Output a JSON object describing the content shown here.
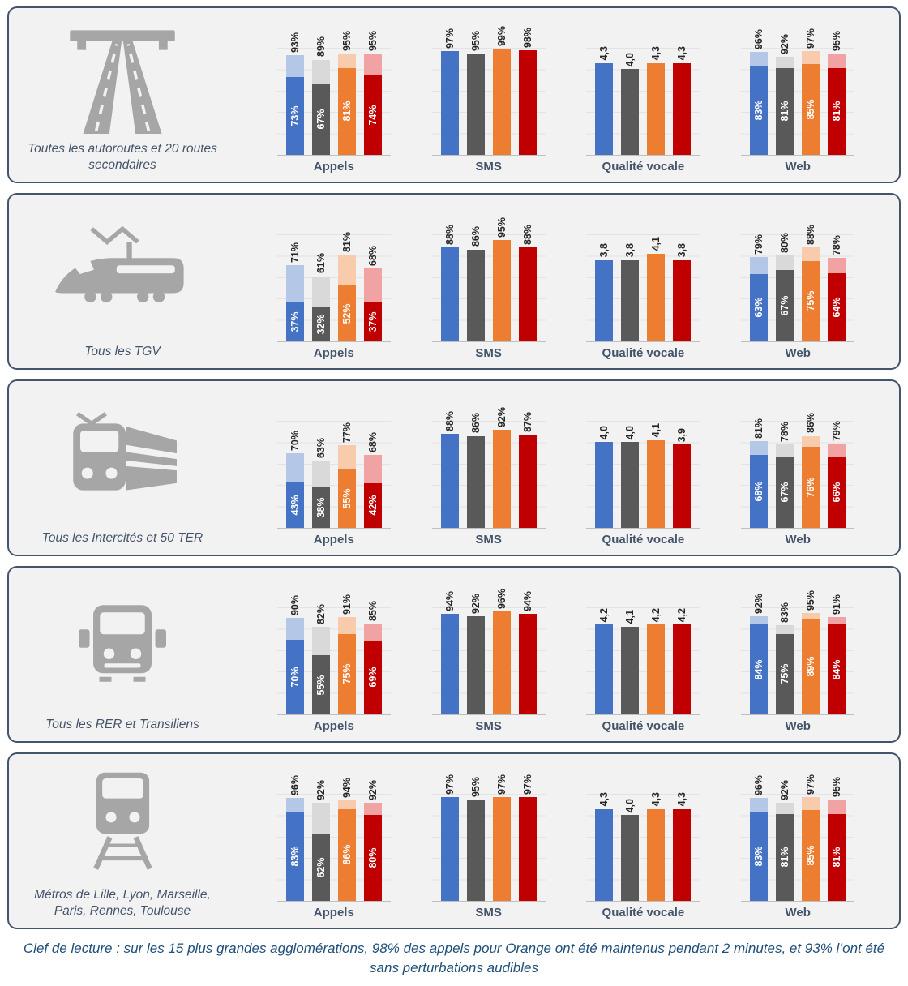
{
  "caption": "Clef de lecture : sur les 15 plus grandes agglomérations, 98% des appels pour Orange ont été maintenus pendant 2 minutes, et 93% l’ont été sans perturbations audibles",
  "series_names": [
    "blue",
    "gray",
    "orange",
    "red"
  ],
  "colors": {
    "series": [
      "#4472C4",
      "#595959",
      "#ED7D31",
      "#C00000"
    ],
    "series_light": [
      "#B4C7E7",
      "#D9D9D9",
      "#F8CBAD",
      "#F1A3A3"
    ],
    "panel_border": "#44546A",
    "panel_bg": "#F2F2F2",
    "icon": "#A6A6A6",
    "title_text": "#44546A",
    "value_text": "#262626",
    "caption_text": "#1F4E79"
  },
  "chart_data": [
    {
      "group": "Toutes les autoroutes et 20 routes secondaires",
      "icon": "highway",
      "charts": [
        {
          "type": "bar",
          "stacked": true,
          "title": "Appels",
          "max": 100,
          "totals": [
            93,
            89,
            95,
            95
          ],
          "total_labels": [
            "93%",
            "89%",
            "95%",
            "95%"
          ],
          "inner": [
            73,
            67,
            81,
            74
          ],
          "inner_labels": [
            "73%",
            "67%",
            "81%",
            "74%"
          ]
        },
        {
          "type": "bar",
          "stacked": false,
          "title": "SMS",
          "max": 100,
          "totals": [
            97,
            95,
            99,
            98
          ],
          "total_labels": [
            "97%",
            "95%",
            "99%",
            "98%"
          ]
        },
        {
          "type": "bar",
          "stacked": false,
          "title": "Qualité vocale",
          "max": 5,
          "totals": [
            4.3,
            4.0,
            4.3,
            4.3
          ],
          "total_labels": [
            "4,3",
            "4,0",
            "4,3",
            "4,3"
          ]
        },
        {
          "type": "bar",
          "stacked": true,
          "title": "Web",
          "max": 100,
          "totals": [
            96,
            92,
            97,
            95
          ],
          "total_labels": [
            "96%",
            "92%",
            "97%",
            "95%"
          ],
          "inner": [
            83,
            81,
            85,
            81
          ],
          "inner_labels": [
            "83%",
            "81%",
            "85%",
            "81%"
          ]
        }
      ]
    },
    {
      "group": "Tous les TGV",
      "icon": "tgv",
      "charts": [
        {
          "type": "bar",
          "stacked": true,
          "title": "Appels",
          "max": 100,
          "totals": [
            71,
            61,
            81,
            68
          ],
          "total_labels": [
            "71%",
            "61%",
            "81%",
            "68%"
          ],
          "inner": [
            37,
            32,
            52,
            37
          ],
          "inner_labels": [
            "37%",
            "32%",
            "52%",
            "37%"
          ]
        },
        {
          "type": "bar",
          "stacked": false,
          "title": "SMS",
          "max": 100,
          "totals": [
            88,
            86,
            95,
            88
          ],
          "total_labels": [
            "88%",
            "86%",
            "95%",
            "88%"
          ]
        },
        {
          "type": "bar",
          "stacked": false,
          "title": "Qualité vocale",
          "max": 5,
          "totals": [
            3.8,
            3.8,
            4.1,
            3.8
          ],
          "total_labels": [
            "3,8",
            "3,8",
            "4,1",
            "3,8"
          ]
        },
        {
          "type": "bar",
          "stacked": true,
          "title": "Web",
          "max": 100,
          "totals": [
            79,
            80,
            88,
            78
          ],
          "total_labels": [
            "79%",
            "80%",
            "88%",
            "78%"
          ],
          "inner": [
            63,
            67,
            75,
            64
          ],
          "inner_labels": [
            "63%",
            "67%",
            "75%",
            "64%"
          ]
        }
      ]
    },
    {
      "group": "Tous les Intercités et 50 TER",
      "icon": "train",
      "charts": [
        {
          "type": "bar",
          "stacked": true,
          "title": "Appels",
          "max": 100,
          "totals": [
            70,
            63,
            77,
            68
          ],
          "total_labels": [
            "70%",
            "63%",
            "77%",
            "68%"
          ],
          "inner": [
            43,
            38,
            55,
            42
          ],
          "inner_labels": [
            "43%",
            "38%",
            "55%",
            "42%"
          ]
        },
        {
          "type": "bar",
          "stacked": false,
          "title": "SMS",
          "max": 100,
          "totals": [
            88,
            86,
            92,
            87
          ],
          "total_labels": [
            "88%",
            "86%",
            "92%",
            "87%"
          ]
        },
        {
          "type": "bar",
          "stacked": false,
          "title": "Qualité vocale",
          "max": 5,
          "totals": [
            4.0,
            4.0,
            4.1,
            3.9
          ],
          "total_labels": [
            "4,0",
            "4,0",
            "4,1",
            "3,9"
          ]
        },
        {
          "type": "bar",
          "stacked": true,
          "title": "Web",
          "max": 100,
          "totals": [
            81,
            78,
            86,
            79
          ],
          "total_labels": [
            "81%",
            "78%",
            "86%",
            "79%"
          ],
          "inner": [
            68,
            67,
            76,
            66
          ],
          "inner_labels": [
            "68%",
            "67%",
            "76%",
            "66%"
          ]
        }
      ]
    },
    {
      "group": "Tous les RER et Transiliens",
      "icon": "rer",
      "charts": [
        {
          "type": "bar",
          "stacked": true,
          "title": "Appels",
          "max": 100,
          "totals": [
            90,
            82,
            91,
            85
          ],
          "total_labels": [
            "90%",
            "82%",
            "91%",
            "85%"
          ],
          "inner": [
            70,
            55,
            75,
            69
          ],
          "inner_labels": [
            "70%",
            "55%",
            "75%",
            "69%"
          ]
        },
        {
          "type": "bar",
          "stacked": false,
          "title": "SMS",
          "max": 100,
          "totals": [
            94,
            92,
            96,
            94
          ],
          "total_labels": [
            "94%",
            "92%",
            "96%",
            "94%"
          ]
        },
        {
          "type": "bar",
          "stacked": false,
          "title": "Qualité vocale",
          "max": 5,
          "totals": [
            4.2,
            4.1,
            4.2,
            4.2
          ],
          "total_labels": [
            "4,2",
            "4,1",
            "4,2",
            "4,2"
          ]
        },
        {
          "type": "bar",
          "stacked": true,
          "title": "Web",
          "max": 100,
          "totals": [
            92,
            83,
            95,
            91
          ],
          "total_labels": [
            "92%",
            "83%",
            "95%",
            "91%"
          ],
          "inner": [
            84,
            75,
            89,
            84
          ],
          "inner_labels": [
            "84%",
            "75%",
            "89%",
            "84%"
          ]
        }
      ]
    },
    {
      "group": "Métros de Lille, Lyon, Marseille, Paris, Rennes, Toulouse",
      "icon": "metro",
      "charts": [
        {
          "type": "bar",
          "stacked": true,
          "title": "Appels",
          "max": 100,
          "totals": [
            96,
            92,
            94,
            92
          ],
          "total_labels": [
            "96%",
            "92%",
            "94%",
            "92%"
          ],
          "inner": [
            83,
            62,
            86,
            80
          ],
          "inner_labels": [
            "83%",
            "62%",
            "86%",
            "80%"
          ]
        },
        {
          "type": "bar",
          "stacked": false,
          "title": "SMS",
          "max": 100,
          "totals": [
            97,
            95,
            97,
            97
          ],
          "total_labels": [
            "97%",
            "95%",
            "97%",
            "97%"
          ]
        },
        {
          "type": "bar",
          "stacked": false,
          "title": "Qualité vocale",
          "max": 5,
          "totals": [
            4.3,
            4.0,
            4.3,
            4.3
          ],
          "total_labels": [
            "4,3",
            "4,0",
            "4,3",
            "4,3"
          ]
        },
        {
          "type": "bar",
          "stacked": true,
          "title": "Web",
          "max": 100,
          "totals": [
            96,
            92,
            97,
            95
          ],
          "total_labels": [
            "96%",
            "92%",
            "97%",
            "95%"
          ],
          "inner": [
            83,
            81,
            85,
            81
          ],
          "inner_labels": [
            "83%",
            "81%",
            "85%",
            "81%"
          ]
        }
      ]
    }
  ]
}
